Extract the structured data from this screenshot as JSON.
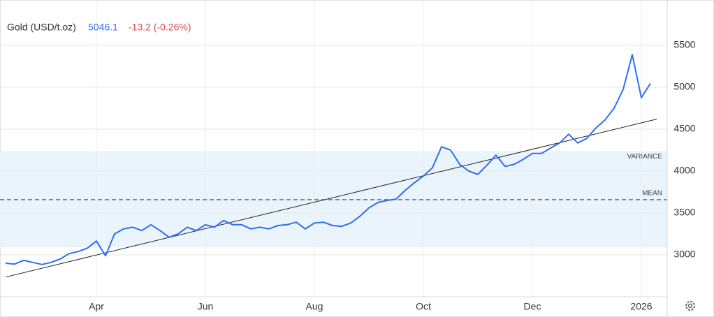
{
  "chart_data": {
    "type": "line",
    "title": "Gold (USD/t.oz)",
    "last": 5046.1,
    "change": "-13.2 (-0.26%)",
    "categories": [
      null,
      null,
      null,
      null,
      null,
      null,
      null,
      null,
      null,
      null,
      "Apr",
      null,
      null,
      null,
      null,
      null,
      null,
      null,
      null,
      null,
      null,
      null,
      "Jun",
      null,
      null,
      null,
      null,
      null,
      null,
      null,
      null,
      null,
      null,
      null,
      "Aug",
      null,
      null,
      null,
      null,
      null,
      null,
      null,
      null,
      null,
      null,
      null,
      "Oct",
      null,
      null,
      null,
      null,
      null,
      null,
      null,
      null,
      null,
      null,
      null,
      "Dec",
      null,
      null,
      null,
      null,
      null,
      null,
      null,
      null,
      null,
      null,
      null,
      "2026",
      null
    ],
    "series": [
      {
        "name": "Gold",
        "color": "#2f6ef0",
        "values": [
          2900,
          2890,
          2935,
          2910,
          2885,
          2910,
          2950,
          3015,
          3040,
          3080,
          3165,
          2990,
          3250,
          3310,
          3330,
          3290,
          3360,
          3290,
          3210,
          3250,
          3330,
          3290,
          3360,
          3330,
          3410,
          3360,
          3360,
          3310,
          3330,
          3310,
          3350,
          3360,
          3390,
          3310,
          3380,
          3390,
          3350,
          3340,
          3380,
          3460,
          3560,
          3625,
          3650,
          3665,
          3770,
          3860,
          3940,
          4040,
          4290,
          4250,
          4080,
          4000,
          3960,
          4070,
          4190,
          4055,
          4080,
          4140,
          4210,
          4210,
          4275,
          4335,
          4440,
          4335,
          4390,
          4515,
          4610,
          4750,
          4975,
          5390,
          4875,
          5046
        ]
      }
    ],
    "trend": {
      "start": 2735,
      "end": 4620,
      "color": "#222222"
    },
    "mean": {
      "label": "MEAN",
      "value": 3658
    },
    "variance": {
      "label": "VARIANCE",
      "low": 3090,
      "high": 4240
    },
    "ylim": [
      2500,
      6000
    ],
    "yticks": [
      3000,
      3500,
      4000,
      4500,
      5000,
      5500
    ],
    "grid": true
  }
}
